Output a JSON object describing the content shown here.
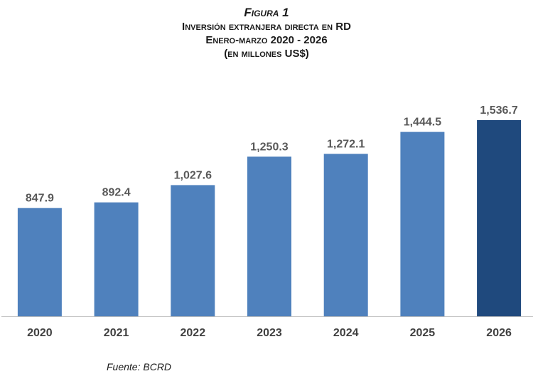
{
  "header": {
    "figure_label": "Figura 1",
    "title": "Inversión extranjera directa en RD",
    "subtitle": "Enero-marzo 2020 - 2026",
    "units": "(en millones US$)"
  },
  "chart_data": {
    "type": "bar",
    "categories": [
      "2020",
      "2021",
      "2022",
      "2023",
      "2024",
      "2025",
      "2026"
    ],
    "values": [
      847.9,
      892.4,
      1027.6,
      1250.3,
      1272.1,
      1444.5,
      1536.7
    ],
    "value_labels": [
      "847.9",
      "892.4",
      "1,027.6",
      "1,250.3",
      "1,272.1",
      "1,444.5",
      "1,536.7"
    ],
    "ylim": [
      0,
      1536.7
    ],
    "grid": false,
    "colors": {
      "bar": "#4f81bd",
      "highlight_bar": "#1f497d",
      "axis": "#bfbfbf"
    },
    "highlight_index": 6
  },
  "footer": {
    "source": "Fuente: BCRD"
  }
}
